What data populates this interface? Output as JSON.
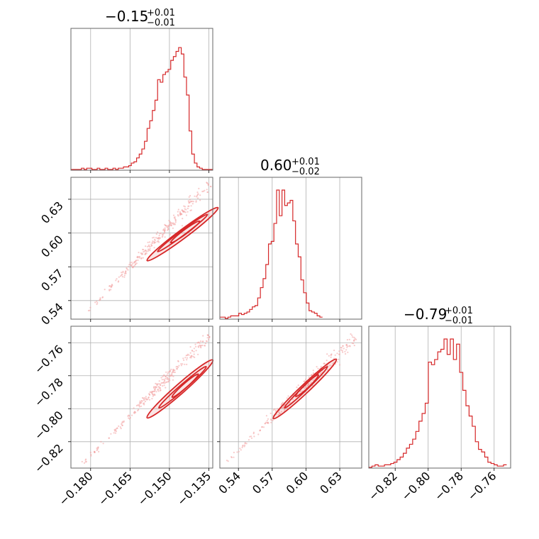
{
  "chart_data": {
    "type": "corner",
    "color": "#d62728",
    "grid": true,
    "parameters": [
      {
        "title": {
          "median": "−0.15",
          "upper": "+0.01",
          "lower": "−0.01"
        },
        "range": [
          -0.1875,
          -0.1335
        ],
        "ticks": [
          "−0.180",
          "−0.165",
          "−0.150",
          "−0.135"
        ],
        "tick_values": [
          -0.18,
          -0.165,
          -0.15,
          -0.135
        ],
        "histogram": {
          "bin_edges_start": -0.1875,
          "bin_width": 0.001,
          "counts": [
            0.0,
            0.0,
            0.0,
            0.0,
            0.01,
            0.0,
            0.01,
            0.01,
            0.0,
            0.0,
            0.01,
            0.0,
            0.0,
            0.01,
            0.0,
            0.0,
            0.01,
            0.0,
            0.01,
            0.01,
            0.02,
            0.02,
            0.03,
            0.05,
            0.06,
            0.09,
            0.12,
            0.16,
            0.22,
            0.32,
            0.38,
            0.46,
            0.54,
            0.7,
            0.68,
            0.74,
            0.76,
            0.78,
            0.85,
            0.88,
            0.92,
            0.95,
            0.9,
            0.72,
            0.58,
            0.3,
            0.12,
            0.05,
            0.02,
            0.01,
            0.0,
            0.0,
            0.0,
            0.0
          ]
        }
      },
      {
        "title": {
          "median": "0.60",
          "upper": "+0.01",
          "lower": "−0.02"
        },
        "range": [
          0.5235,
          0.6495
        ],
        "ticks": [
          "0.54",
          "0.57",
          "0.60",
          "0.63"
        ],
        "tick_values": [
          0.54,
          0.57,
          0.6,
          0.63
        ],
        "histogram": {
          "bin_edges_start": 0.5235,
          "bin_width": 0.0024,
          "counts": [
            0.01,
            0.01,
            0.0,
            0.01,
            0.02,
            0.02,
            0.02,
            0.04,
            0.03,
            0.04,
            0.05,
            0.07,
            0.09,
            0.1,
            0.16,
            0.24,
            0.31,
            0.42,
            0.58,
            0.6,
            0.74,
            1.0,
            0.8,
            1.0,
            0.88,
            0.9,
            0.92,
            0.76,
            0.58,
            0.48,
            0.3,
            0.2,
            0.12,
            0.06,
            0.05,
            0.04,
            0.02,
            0.01
          ]
        }
      },
      {
        "title": {
          "median": "−0.79",
          "upper": "+0.01",
          "lower": "−0.01"
        },
        "range": [
          -0.836,
          -0.75
        ],
        "ticks": [
          "−0.82",
          "−0.80",
          "−0.78",
          "−0.76"
        ],
        "tick_values": [
          -0.82,
          -0.8,
          -0.78,
          -0.76
        ],
        "histogram": {
          "bin_edges_start": -0.836,
          "bin_width": 0.0019,
          "counts": [
            0.0,
            0.01,
            0.02,
            0.01,
            0.01,
            0.02,
            0.02,
            0.03,
            0.04,
            0.06,
            0.08,
            0.11,
            0.15,
            0.18,
            0.22,
            0.28,
            0.36,
            0.42,
            0.5,
            0.82,
            0.8,
            0.84,
            0.9,
            0.92,
            1.0,
            0.88,
            1.0,
            0.84,
            0.96,
            0.74,
            0.6,
            0.48,
            0.4,
            0.32,
            0.2,
            0.14,
            0.12,
            0.08,
            0.04,
            0.03,
            0.02,
            0.01,
            0.01,
            0.02
          ]
        }
      }
    ],
    "pairs": [
      {
        "x_param": 0,
        "y_param": 1,
        "contours": [
          {
            "center": [
              -0.145,
              0.599
            ],
            "half_length": [
              0.0135,
              0.0235
            ],
            "width_frac": 0.045
          },
          {
            "center": [
              -0.145,
              0.6
            ],
            "half_length": [
              0.0095,
              0.0165
            ],
            "width_frac": 0.035
          },
          {
            "center": [
              -0.144,
              0.601
            ],
            "half_length": [
              0.0055,
              0.0095
            ],
            "width_frac": 0.025
          }
        ],
        "scatter": {
          "x_range": [
            -0.182,
            -0.135
          ],
          "y_range": [
            0.528,
            0.643
          ]
        }
      },
      {
        "x_param": 0,
        "y_param": 2,
        "contours": [
          {
            "center": [
              -0.146,
              -0.788
            ],
            "half_length": [
              0.0125,
              0.0175
            ],
            "width_frac": 0.05
          },
          {
            "center": [
              -0.145,
              -0.787
            ],
            "half_length": [
              0.009,
              0.0125
            ],
            "width_frac": 0.04
          },
          {
            "center": [
              -0.144,
              -0.786
            ],
            "half_length": [
              0.005,
              0.007
            ],
            "width_frac": 0.03
          }
        ],
        "scatter": {
          "x_range": [
            -0.183,
            -0.135
          ],
          "y_range": [
            -0.833,
            -0.756
          ]
        }
      },
      {
        "x_param": 1,
        "y_param": 2,
        "contours": [
          {
            "center": [
              0.599,
              -0.788
            ],
            "half_length": [
              0.028,
              0.018
            ],
            "width_frac": 0.045
          },
          {
            "center": [
              0.6,
              -0.787
            ],
            "half_length": [
              0.019,
              0.0125
            ],
            "width_frac": 0.035
          },
          {
            "center": [
              0.601,
              -0.786
            ],
            "half_length": [
              0.01,
              0.0065
            ],
            "width_frac": 0.025
          }
        ],
        "scatter": {
          "x_range": [
            0.53,
            0.643
          ],
          "y_range": [
            -0.832,
            -0.757
          ]
        }
      }
    ]
  }
}
